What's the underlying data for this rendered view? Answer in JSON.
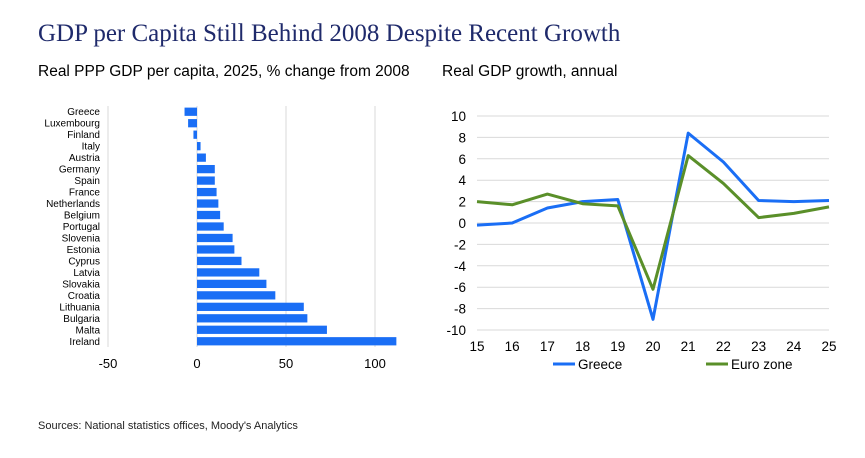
{
  "title": "GDP per Capita Still Behind 2008 Despite Recent Growth",
  "source": "Sources: National statistics offices, Moody's Analytics",
  "colors": {
    "title": "#1f2a6b",
    "bar": "#1a6ef5",
    "greece": "#1a6ef5",
    "eurozone": "#5a8f29",
    "grid": "#d9d9d9"
  },
  "chart_data": [
    {
      "type": "bar",
      "orientation": "horizontal",
      "title": "Real PPP GDP per capita, 2025, % change from 2008",
      "categories": [
        "Greece",
        "Luxembourg",
        "Finland",
        "Italy",
        "Austria",
        "Germany",
        "Spain",
        "France",
        "Netherlands",
        "Belgium",
        "Portugal",
        "Slovenia",
        "Estonia",
        "Cyprus",
        "Latvia",
        "Slovakia",
        "Croatia",
        "Lithuania",
        "Bulgaria",
        "Malta",
        "Ireland"
      ],
      "values": [
        -7,
        -5,
        -2,
        2,
        5,
        10,
        10,
        11,
        12,
        13,
        15,
        20,
        21,
        25,
        35,
        39,
        44,
        60,
        62,
        73,
        112
      ],
      "xlim": [
        -50,
        115
      ],
      "xticks": [
        "-50",
        "0",
        "50",
        "100"
      ],
      "grid": true
    },
    {
      "type": "line",
      "title": "Real GDP growth, annual",
      "x": [
        "15",
        "16",
        "17",
        "18",
        "19",
        "20",
        "21",
        "22",
        "23",
        "24",
        "25"
      ],
      "ylim": [
        -10,
        10
      ],
      "yticks": [
        "10",
        "8",
        "6",
        "4",
        "2",
        "0",
        "-2",
        "-4",
        "-6",
        "-8",
        "-10"
      ],
      "grid": true,
      "legend": "bottom",
      "series": [
        {
          "name": "Greece",
          "values": [
            -0.2,
            0.0,
            1.4,
            2.0,
            2.2,
            -9.0,
            8.4,
            5.7,
            2.1,
            2.0,
            2.1
          ]
        },
        {
          "name": "Euro zone",
          "values": [
            2.0,
            1.7,
            2.7,
            1.8,
            1.6,
            -6.2,
            6.3,
            3.7,
            0.5,
            0.9,
            1.5
          ]
        }
      ]
    }
  ]
}
